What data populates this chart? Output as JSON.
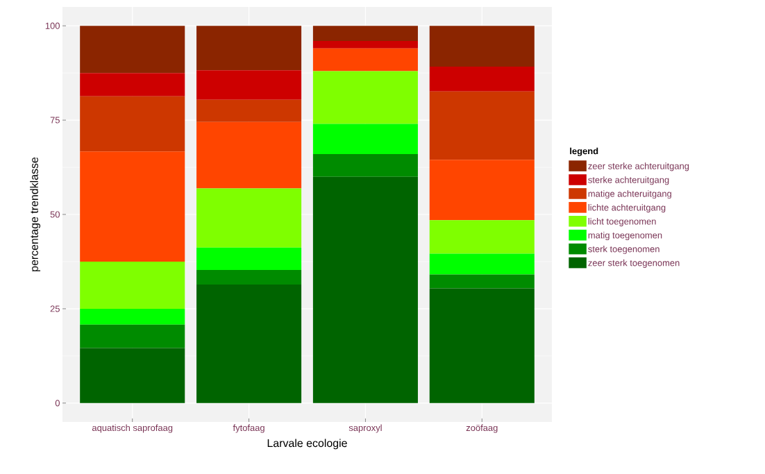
{
  "chart_data": {
    "type": "bar",
    "stacked": true,
    "xlabel": "Larvale ecologie",
    "ylabel": "percentage trendklasse",
    "legend_title": "legend",
    "categories": [
      "aquatisch saprofaag",
      "fytofaag",
      "saproxyl",
      "zoöfaag"
    ],
    "series": [
      {
        "name": "zeer sterk toegenomen",
        "color": "#006400",
        "values": [
          14.6,
          31.4,
          60,
          30.4
        ]
      },
      {
        "name": "sterk toegenomen",
        "color": "#008b00",
        "values": [
          6.2,
          3.9,
          6,
          3.7
        ]
      },
      {
        "name": "matig toegenomen",
        "color": "#00ff00",
        "values": [
          4.2,
          5.9,
          8,
          5.5
        ]
      },
      {
        "name": "licht toegenomen",
        "color": "#7fff00",
        "values": [
          12.5,
          15.7,
          14,
          8.9
        ]
      },
      {
        "name": "lichte achteruitgang",
        "color": "#ff4500",
        "values": [
          29.2,
          17.6,
          6,
          16.0
        ]
      },
      {
        "name": "matige achteruitgang",
        "color": "#cd3700",
        "values": [
          14.6,
          5.9,
          0,
          18.1
        ]
      },
      {
        "name": "sterke achteruitgang",
        "color": "#cd0000",
        "values": [
          6.2,
          7.8,
          2,
          6.6
        ]
      },
      {
        "name": "zeer sterke achteruitgang",
        "color": "#8b2500",
        "values": [
          12.5,
          11.8,
          4,
          10.8
        ]
      }
    ],
    "ylim": [
      -5,
      105
    ],
    "yticks": [
      0,
      25,
      50,
      75,
      100
    ],
    "grid": true,
    "legend": "right"
  }
}
